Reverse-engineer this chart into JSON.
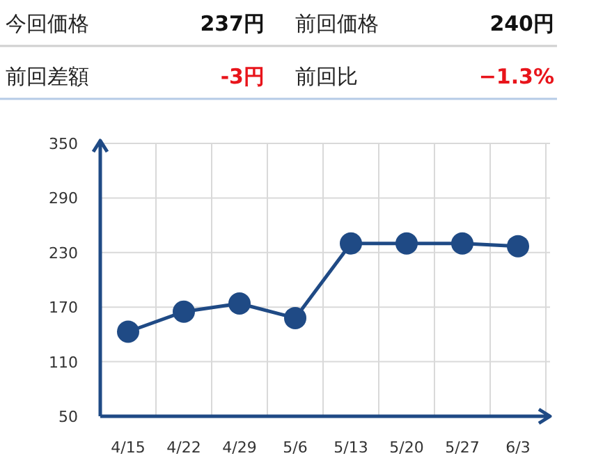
{
  "chart_data": [
    {
      "type": "other",
      "annotations": [
        "今回価格",
        "237円",
        "前回価格",
        "240円",
        "前回差額",
        "-3円",
        "前回比",
        "−1.3%"
      ],
      "colors": [
        "#222222",
        "#111111",
        "#222222",
        "#111111",
        "#222222",
        "#e8141b",
        "#222222",
        "#e8141b"
      ]
    },
    {
      "type": "line",
      "categories": [
        "4/15",
        "4/22",
        "4/29",
        "5/6",
        "5/13",
        "5/20",
        "5/27",
        "6/3"
      ],
      "series": [
        {
          "color": "#1f4a85",
          "values": [
            143,
            165,
            174,
            158,
            240,
            240,
            240,
            237
          ]
        }
      ],
      "ylim": [
        50,
        350
      ],
      "yticks": [
        50,
        110,
        170,
        230,
        290,
        350
      ],
      "grid": true,
      "marker": "circle",
      "line_style": "solid"
    }
  ]
}
